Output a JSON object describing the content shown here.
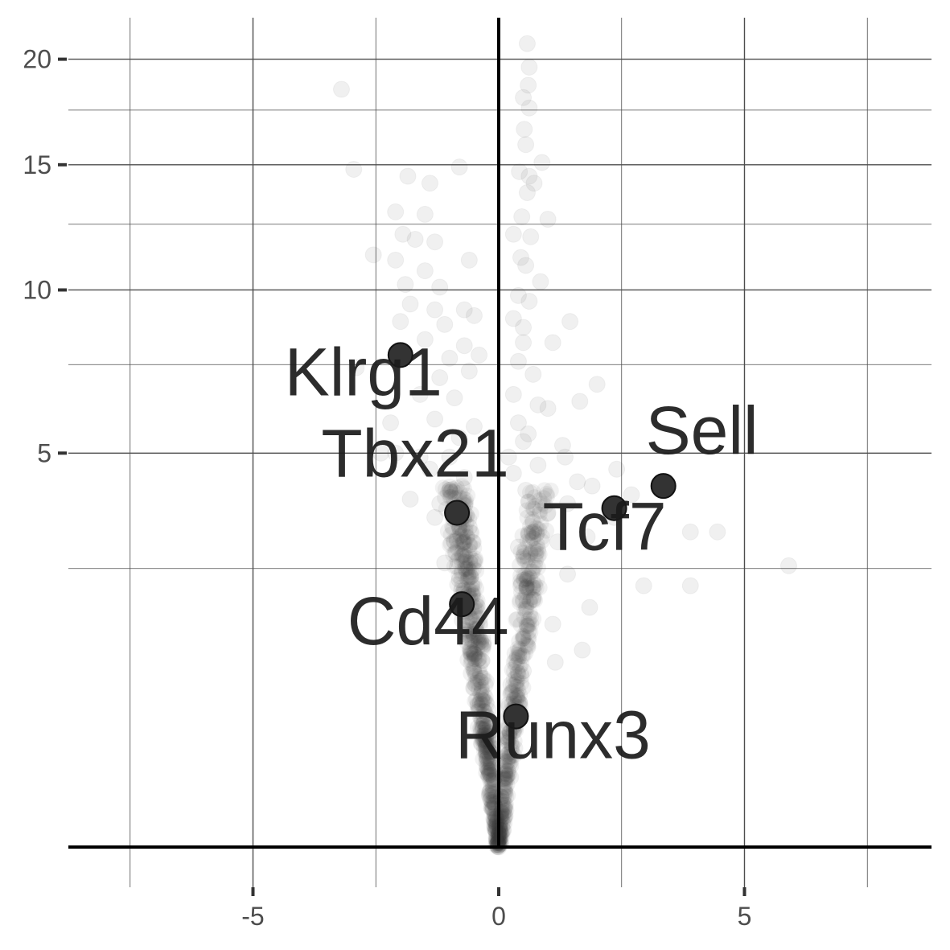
{
  "chart_data": {
    "type": "scatter",
    "title": "",
    "xlabel": "",
    "ylabel": "",
    "xlim": [
      -8.8,
      8.8
    ],
    "x_ticks": [
      -5,
      0,
      5
    ],
    "x_tick_labels": [
      "-5",
      "0",
      "5"
    ],
    "x_minor_gridlines": [
      -7.5,
      -2.5,
      2.5,
      7.5
    ],
    "y_scale": "square-root",
    "ylim": [
      0,
      21
    ],
    "y_ticks": [
      5,
      10,
      15,
      20
    ],
    "y_tick_labels": [
      "5",
      "10",
      "15",
      "20"
    ],
    "y_minor_gridlines": [
      2.5,
      7.5,
      12.5,
      17.5
    ],
    "grid": true,
    "background_points_color": "#3c3c3c",
    "highlight_point_color": "#333333",
    "highlighted_genes": [
      {
        "label": "Klrg1",
        "x": -2.0,
        "y": 7.8
      },
      {
        "label": "Tbx21",
        "x": -0.85,
        "y": 3.6
      },
      {
        "label": "Sell",
        "x": 3.35,
        "y": 4.2
      },
      {
        "label": "Tcf7",
        "x": 2.35,
        "y": 3.7
      },
      {
        "label": "Cd44",
        "x": -0.75,
        "y": 1.9
      },
      {
        "label": "Runx3",
        "x": 0.35,
        "y": 0.55
      }
    ],
    "background_points": [
      {
        "x": -3.2,
        "y": 18.5
      },
      {
        "x": 0.58,
        "y": 20.8
      },
      {
        "x": 0.62,
        "y": 19.6
      },
      {
        "x": 0.6,
        "y": 18.7
      },
      {
        "x": 0.5,
        "y": 18.1
      },
      {
        "x": 0.62,
        "y": 17.6
      },
      {
        "x": 0.52,
        "y": 16.6
      },
      {
        "x": 0.55,
        "y": 15.9
      },
      {
        "x": 0.88,
        "y": 15.1
      },
      {
        "x": -2.95,
        "y": 14.8
      },
      {
        "x": -1.85,
        "y": 14.5
      },
      {
        "x": -0.8,
        "y": 14.9
      },
      {
        "x": -1.4,
        "y": 14.2
      },
      {
        "x": 0.42,
        "y": 14.7
      },
      {
        "x": 0.62,
        "y": 14.5
      },
      {
        "x": 0.58,
        "y": 13.8
      },
      {
        "x": 0.72,
        "y": 14.2
      },
      {
        "x": -2.1,
        "y": 13.0
      },
      {
        "x": -1.5,
        "y": 12.9
      },
      {
        "x": 0.47,
        "y": 12.8
      },
      {
        "x": 1.0,
        "y": 12.7
      },
      {
        "x": -1.95,
        "y": 12.1
      },
      {
        "x": -1.7,
        "y": 11.9
      },
      {
        "x": -1.3,
        "y": 11.8
      },
      {
        "x": 0.3,
        "y": 12.1
      },
      {
        "x": 0.65,
        "y": 12.0
      },
      {
        "x": 0.45,
        "y": 11.2
      },
      {
        "x": -2.55,
        "y": 11.3
      },
      {
        "x": -2.1,
        "y": 11.1
      },
      {
        "x": -1.5,
        "y": 10.7
      },
      {
        "x": -0.6,
        "y": 11.1
      },
      {
        "x": 0.55,
        "y": 10.9
      },
      {
        "x": -1.9,
        "y": 10.2
      },
      {
        "x": -1.2,
        "y": 10.1
      },
      {
        "x": 0.85,
        "y": 10.3
      },
      {
        "x": 0.4,
        "y": 9.8
      },
      {
        "x": 0.62,
        "y": 9.6
      },
      {
        "x": -1.8,
        "y": 9.5
      },
      {
        "x": -1.3,
        "y": 9.3
      },
      {
        "x": -0.7,
        "y": 9.3
      },
      {
        "x": -2.0,
        "y": 8.9
      },
      {
        "x": -1.1,
        "y": 8.8
      },
      {
        "x": -0.5,
        "y": 9.1
      },
      {
        "x": 0.3,
        "y": 9.0
      },
      {
        "x": 0.5,
        "y": 8.7
      },
      {
        "x": 1.45,
        "y": 8.9
      },
      {
        "x": -1.5,
        "y": 8.3
      },
      {
        "x": -0.7,
        "y": 8.1
      },
      {
        "x": 0.5,
        "y": 8.2
      },
      {
        "x": 1.1,
        "y": 8.2
      },
      {
        "x": -1.0,
        "y": 7.7
      },
      {
        "x": -0.4,
        "y": 7.8
      },
      {
        "x": 0.4,
        "y": 7.6
      },
      {
        "x": 0.7,
        "y": 7.2
      },
      {
        "x": -2.9,
        "y": 7.4
      },
      {
        "x": -1.2,
        "y": 7.1
      },
      {
        "x": -0.6,
        "y": 7.3
      },
      {
        "x": 2.0,
        "y": 6.9
      },
      {
        "x": 1.65,
        "y": 6.4
      },
      {
        "x": -1.6,
        "y": 6.6
      },
      {
        "x": -0.9,
        "y": 6.5
      },
      {
        "x": 0.3,
        "y": 6.6
      },
      {
        "x": 0.8,
        "y": 6.3
      },
      {
        "x": 1.0,
        "y": 6.2
      },
      {
        "x": -2.2,
        "y": 5.8
      },
      {
        "x": -1.3,
        "y": 5.9
      },
      {
        "x": -0.5,
        "y": 5.7
      },
      {
        "x": 0.4,
        "y": 5.8
      },
      {
        "x": 0.6,
        "y": 5.5
      },
      {
        "x": -0.8,
        "y": 5.4
      },
      {
        "x": 0.5,
        "y": 5.3
      },
      {
        "x": 1.3,
        "y": 5.2
      },
      {
        "x": -2.4,
        "y": 5.0
      },
      {
        "x": -2.1,
        "y": 5.0
      },
      {
        "x": -1.6,
        "y": 4.9
      },
      {
        "x": -1.0,
        "y": 4.9
      },
      {
        "x": 0.2,
        "y": 4.9
      },
      {
        "x": 0.8,
        "y": 4.7
      },
      {
        "x": 1.35,
        "y": 4.9
      },
      {
        "x": -1.4,
        "y": 4.6
      },
      {
        "x": -0.7,
        "y": 4.4
      },
      {
        "x": 0.3,
        "y": 4.5
      },
      {
        "x": 2.4,
        "y": 4.6
      },
      {
        "x": 1.9,
        "y": 4.2
      },
      {
        "x": 1.6,
        "y": 4.3
      },
      {
        "x": -1.0,
        "y": 4.1
      },
      {
        "x": 0.55,
        "y": 4.1
      },
      {
        "x": 2.7,
        "y": 4.0
      },
      {
        "x": -1.8,
        "y": 3.9
      },
      {
        "x": -1.2,
        "y": 3.8
      },
      {
        "x": 1.4,
        "y": 3.8
      },
      {
        "x": 1.0,
        "y": 3.6
      },
      {
        "x": 2.35,
        "y": 3.5
      },
      {
        "x": 0.7,
        "y": 3.4
      },
      {
        "x": -0.6,
        "y": 3.3
      },
      {
        "x": -1.3,
        "y": 3.5
      },
      {
        "x": 4.45,
        "y": 3.2
      },
      {
        "x": 3.9,
        "y": 3.2
      },
      {
        "x": 1.8,
        "y": 3.1
      },
      {
        "x": 1.2,
        "y": 3.0
      },
      {
        "x": -0.9,
        "y": 3.0
      },
      {
        "x": 0.4,
        "y": 2.9
      },
      {
        "x": 5.9,
        "y": 2.55
      },
      {
        "x": 3.9,
        "y": 2.2
      },
      {
        "x": 2.95,
        "y": 2.2
      },
      {
        "x": 1.4,
        "y": 2.4
      },
      {
        "x": 1.85,
        "y": 1.85
      },
      {
        "x": -1.1,
        "y": 2.6
      },
      {
        "x": -0.8,
        "y": 2.3
      },
      {
        "x": 0.45,
        "y": 2.2
      },
      {
        "x": 1.1,
        "y": 1.6
      },
      {
        "x": 1.7,
        "y": 1.25
      },
      {
        "x": 1.15,
        "y": 1.1
      },
      {
        "x": -0.6,
        "y": 1.7
      },
      {
        "x": 0.6,
        "y": 1.5
      },
      {
        "x": -0.5,
        "y": 1.2
      },
      {
        "x": 0.5,
        "y": 1.0
      },
      {
        "x": -0.35,
        "y": 0.7
      },
      {
        "x": 0.3,
        "y": 0.6
      },
      {
        "x": -0.2,
        "y": 0.35
      },
      {
        "x": 0.15,
        "y": 0.3
      },
      {
        "x": -0.1,
        "y": 0.15
      },
      {
        "x": 0.05,
        "y": 0.08
      },
      {
        "x": 0.0,
        "y": 0.0
      }
    ]
  }
}
